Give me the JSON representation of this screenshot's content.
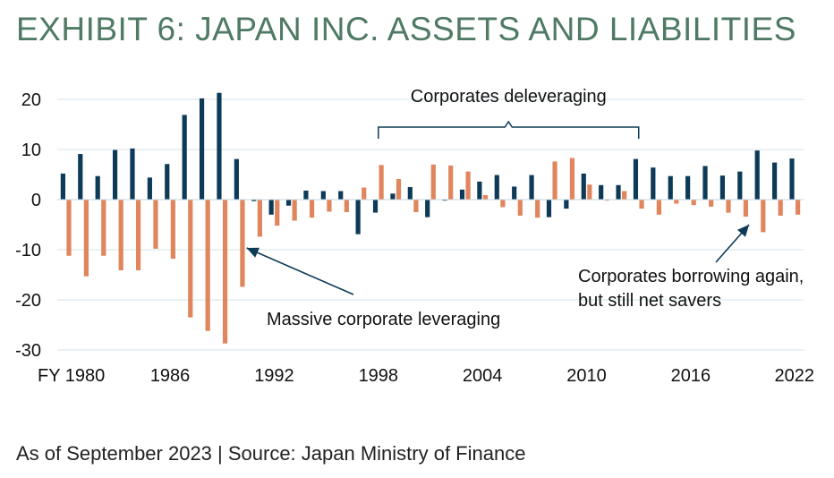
{
  "title": "EXHIBIT 6: JAPAN INC. ASSETS AND LIABILITIES",
  "footnote": "As of September 2023 | Source: Japan Ministry of Finance",
  "colors": {
    "assets": "#0d3b57",
    "liabilities": "#e0855c",
    "bracket": "#0d3b57",
    "grid": "#d6e3ea",
    "title": "#4f7a64"
  },
  "chart_data": {
    "type": "bar",
    "ylim": [
      -30,
      22
    ],
    "yticks": [
      20,
      10,
      0,
      -10,
      -20,
      -30
    ],
    "xticks": [
      "FY 1980",
      "1986",
      "1992",
      "1998",
      "2004",
      "2010",
      "2016",
      "2022"
    ],
    "tick_years": [
      1980,
      1986,
      1992,
      1998,
      2004,
      2010,
      2016,
      2022
    ],
    "categories": [
      1980,
      1981,
      1982,
      1983,
      1984,
      1985,
      1986,
      1987,
      1988,
      1989,
      1990,
      1991,
      1992,
      1993,
      1994,
      1995,
      1996,
      1997,
      1998,
      1999,
      2000,
      2001,
      2002,
      2003,
      2004,
      2005,
      2006,
      2007,
      2008,
      2009,
      2010,
      2011,
      2012,
      2013,
      2014,
      2015,
      2016,
      2017,
      2018,
      2019,
      2020,
      2021,
      2022
    ],
    "series": [
      {
        "key": "assets",
        "values": [
          5.2,
          9.1,
          4.7,
          9.9,
          10.2,
          4.4,
          7.1,
          16.9,
          20.2,
          21.3,
          8.1,
          -0.3,
          -3.0,
          -1.2,
          1.8,
          1.7,
          1.7,
          -6.9,
          -2.6,
          1.2,
          2.5,
          -3.5,
          -0.2,
          2.0,
          3.6,
          4.9,
          2.6,
          4.9,
          -3.5,
          -1.8,
          5.2,
          2.9,
          2.9,
          8.1,
          6.4,
          4.7,
          4.7,
          6.7,
          4.8,
          5.6,
          9.8,
          7.4,
          8.2
        ]
      },
      {
        "key": "liabilities",
        "values": [
          -11.2,
          -15.3,
          -11.2,
          -14.1,
          -14.1,
          -9.8,
          -11.8,
          -23.5,
          -26.2,
          -28.7,
          -17.4,
          -7.4,
          -5.2,
          -4.2,
          -3.6,
          -2.4,
          -2.5,
          2.4,
          6.9,
          4.1,
          -2.5,
          7.0,
          6.8,
          5.6,
          0.9,
          -1.5,
          -3.2,
          -3.6,
          7.6,
          8.3,
          3.0,
          -0.2,
          1.7,
          -1.8,
          -3.0,
          -0.8,
          -1.1,
          -1.4,
          -2.6,
          -3.4,
          -6.5,
          -3.2,
          -3.0
        ]
      }
    ],
    "annotations": [
      {
        "text": "Corporates deleveraging",
        "from_year": 1998,
        "to_year": 2013
      },
      {
        "text": "Massive corporate leveraging",
        "arrow_to_year": 1990,
        "arrow_to_value": -10
      },
      {
        "text": "Corporates borrowing again,",
        "text2": "but still net savers",
        "arrow_to_year": 2019,
        "arrow_to_value": -5
      }
    ]
  }
}
